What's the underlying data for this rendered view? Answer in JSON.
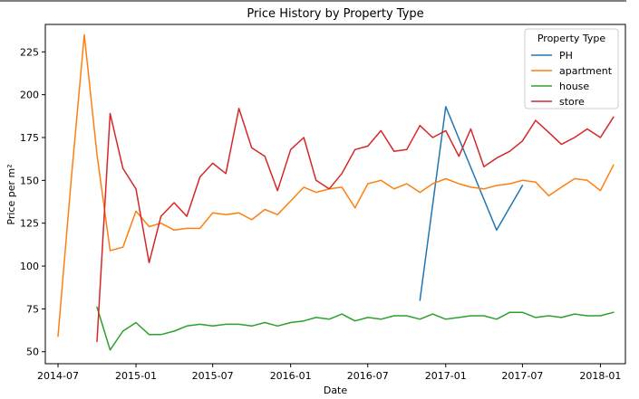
{
  "chart_data": {
    "type": "line",
    "title": "Price History by Property Type",
    "xlabel": "Date",
    "ylabel": "Price per m²",
    "x_ticks": [
      "2014-07",
      "2015-01",
      "2015-07",
      "2016-01",
      "2016-07",
      "2017-01",
      "2017-07",
      "2018-01"
    ],
    "y_ticks": [
      50,
      75,
      100,
      125,
      150,
      175,
      200,
      225
    ],
    "ylim": [
      43,
      241
    ],
    "xlim": [
      "2014-06-01",
      "2018-03-01"
    ],
    "grid": false,
    "legend": {
      "title": "Property Type",
      "placement": "top-right"
    },
    "series": [
      {
        "name": "PH",
        "color": "#1f77b4",
        "x": [
          "2016-11-01",
          "2017-01-01",
          "2017-05-01",
          "2017-07-01"
        ],
        "values": [
          80,
          193,
          121,
          147
        ]
      },
      {
        "name": "apartment",
        "color": "#ff7f0e",
        "x": [
          "2014-07-01",
          "2014-08-01",
          "2014-09-01",
          "2014-10-01",
          "2014-11-01",
          "2014-12-01",
          "2015-01-01",
          "2015-02-01",
          "2015-03-01",
          "2015-04-01",
          "2015-05-01",
          "2015-06-01",
          "2015-07-01",
          "2015-08-01",
          "2015-09-01",
          "2015-10-01",
          "2015-11-01",
          "2015-12-01",
          "2016-01-01",
          "2016-02-01",
          "2016-03-01",
          "2016-04-01",
          "2016-05-01",
          "2016-06-01",
          "2016-07-01",
          "2016-08-01",
          "2016-09-01",
          "2016-10-01",
          "2016-11-01",
          "2016-12-01",
          "2017-01-01",
          "2017-02-01",
          "2017-03-01",
          "2017-04-01",
          "2017-05-01",
          "2017-06-01",
          "2017-07-01",
          "2017-08-01",
          "2017-09-01",
          "2017-10-01",
          "2017-11-01",
          "2017-12-01",
          "2018-01-01",
          "2018-02-01"
        ],
        "values": [
          59,
          150,
          235,
          165,
          109,
          111,
          132,
          123,
          125,
          121,
          122,
          122,
          131,
          130,
          131,
          127,
          133,
          130,
          138,
          146,
          143,
          145,
          146,
          134,
          148,
          150,
          145,
          148,
          143,
          148,
          151,
          148,
          146,
          145,
          147,
          148,
          150,
          149,
          141,
          146,
          151,
          150,
          144,
          159
        ]
      },
      {
        "name": "house",
        "color": "#2ca02c",
        "x": [
          "2014-10-01",
          "2014-11-01",
          "2014-12-01",
          "2015-01-01",
          "2015-02-01",
          "2015-03-01",
          "2015-04-01",
          "2015-05-01",
          "2015-06-01",
          "2015-07-01",
          "2015-08-01",
          "2015-09-01",
          "2015-10-01",
          "2015-11-01",
          "2015-12-01",
          "2016-01-01",
          "2016-02-01",
          "2016-03-01",
          "2016-04-01",
          "2016-05-01",
          "2016-06-01",
          "2016-07-01",
          "2016-08-01",
          "2016-09-01",
          "2016-10-01",
          "2016-11-01",
          "2016-12-01",
          "2017-01-01",
          "2017-02-01",
          "2017-03-01",
          "2017-04-01",
          "2017-05-01",
          "2017-06-01",
          "2017-07-01",
          "2017-08-01",
          "2017-09-01",
          "2017-10-01",
          "2017-11-01",
          "2017-12-01",
          "2018-01-01",
          "2018-02-01"
        ],
        "values": [
          76,
          51,
          62,
          67,
          60,
          60,
          62,
          65,
          66,
          65,
          66,
          66,
          65,
          67,
          65,
          67,
          68,
          70,
          69,
          72,
          68,
          70,
          69,
          71,
          71,
          69,
          72,
          69,
          70,
          71,
          71,
          69,
          73,
          73,
          70,
          71,
          70,
          72,
          71,
          71,
          73
        ]
      },
      {
        "name": "store",
        "color": "#d62728",
        "x": [
          "2014-10-01",
          "2014-11-01",
          "2014-12-01",
          "2015-01-01",
          "2015-02-01",
          "2015-03-01",
          "2015-04-01",
          "2015-05-01",
          "2015-06-01",
          "2015-07-01",
          "2015-08-01",
          "2015-09-01",
          "2015-10-01",
          "2015-11-01",
          "2015-12-01",
          "2016-01-01",
          "2016-02-01",
          "2016-03-01",
          "2016-04-01",
          "2016-05-01",
          "2016-06-01",
          "2016-07-01",
          "2016-08-01",
          "2016-09-01",
          "2016-10-01",
          "2016-11-01",
          "2016-12-01",
          "2017-01-01",
          "2017-02-01",
          "2017-03-01",
          "2017-04-01",
          "2017-05-01",
          "2017-06-01",
          "2017-07-01",
          "2017-08-01",
          "2017-09-01",
          "2017-10-01",
          "2017-11-01",
          "2017-12-01",
          "2018-01-01",
          "2018-02-01"
        ],
        "values": [
          56,
          189,
          157,
          145,
          102,
          129,
          137,
          129,
          152,
          160,
          154,
          192,
          169,
          164,
          144,
          168,
          175,
          150,
          145,
          154,
          168,
          170,
          179,
          167,
          168,
          182,
          175,
          179,
          164,
          180,
          158,
          163,
          167,
          173,
          185,
          178,
          171,
          175,
          180,
          175,
          187
        ]
      }
    ]
  }
}
